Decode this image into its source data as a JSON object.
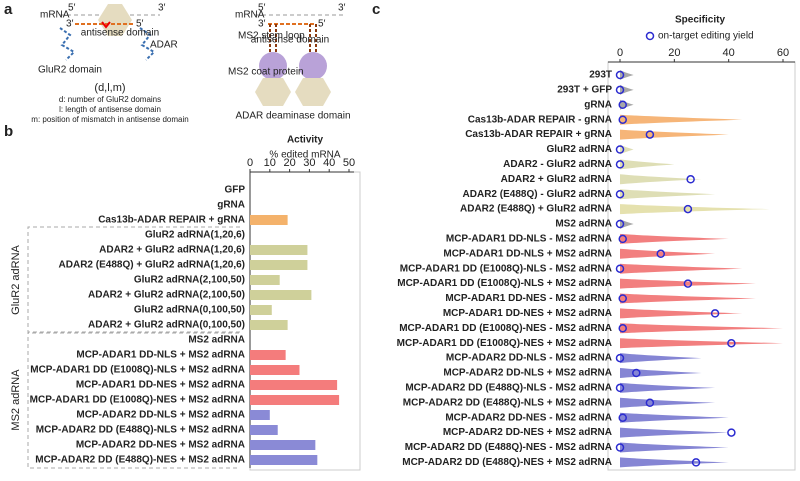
{
  "panel_labels": [
    "a",
    "b",
    "c"
  ],
  "panel_a": {
    "left": {
      "mrna": "mRNA",
      "five": "5′",
      "three": "3′",
      "three_b": "3′",
      "five_b": "5′",
      "antisense": "antisense domain",
      "adar": "ADAR",
      "glur2": "GluR2 domain",
      "notation": "(d,l,m)",
      "legend": [
        "d: number of GluR2 domains",
        "l: length of antisense domain",
        "m: position of mismatch in antisense domain"
      ]
    },
    "right": {
      "mrna": "mRNA",
      "five": "5′",
      "three": "3′",
      "three_b": "3′",
      "five_b": "5′",
      "stem": "MS2 stem loop",
      "antisense": "antisense domain",
      "coat": "MS2 coat protein",
      "deaminase": "ADAR deaminase domain"
    }
  },
  "chart_data": [
    {
      "type": "bar",
      "title": "Activity",
      "subtitle": "% edited mRNA",
      "groups": [
        "GluR2 adRNA",
        "MS2 adRNA"
      ],
      "categories": [
        "GFP",
        "gRNA",
        "Cas13b-ADAR REPAIR + gRNA",
        "GluR2 adRNA(1,20,6)",
        "ADAR2 + GluR2 adRNA(1,20,6)",
        "ADAR2 (E488Q) + GluR2 adRNA(1,20,6)",
        "GluR2 adRNA(2,100,50)",
        "ADAR2 + GluR2 adRNA(2,100,50)",
        "GluR2 adRNA(0,100,50)",
        "ADAR2 + GluR2 adRNA(0,100,50)",
        "MS2 adRNA",
        "MCP-ADAR1 DD-NLS + MS2 adRNA",
        "MCP-ADAR1 DD (E1008Q)-NLS + MS2 adRNA",
        "MCP-ADAR1 DD-NES + MS2 adRNA",
        "MCP-ADAR1 DD (E1008Q)-NES + MS2 adRNA",
        "MCP-ADAR2 DD-NLS + MS2 adRNA",
        "MCP-ADAR2 DD (E488Q)-NLS + MS2 adRNA",
        "MCP-ADAR2 DD-NES + MS2 adRNA",
        "MCP-ADAR2 DD (E488Q)-NES + MS2 adRNA"
      ],
      "values": [
        0,
        0,
        19,
        0,
        29,
        29,
        15,
        31,
        11,
        19,
        0,
        18,
        25,
        44,
        45,
        10,
        14,
        33,
        34
      ],
      "colors": [
        "#f4b26b",
        "#f4b26b",
        "#f4b26b",
        "#cfd09a",
        "#cfd09a",
        "#cfd09a",
        "#cfd09a",
        "#cfd09a",
        "#cfd09a",
        "#cfd09a",
        "#f47c7c",
        "#f47c7c",
        "#f47c7c",
        "#f47c7c",
        "#f47c7c",
        "#8a8ad6",
        "#8a8ad6",
        "#8a8ad6",
        "#8a8ad6"
      ],
      "xlim": [
        0,
        50
      ],
      "xticks": [
        0,
        10,
        20,
        30,
        40,
        50
      ]
    },
    {
      "type": "violin",
      "title": "Specificity",
      "categories": [
        "293T",
        "293T + GFP",
        "gRNA",
        "Cas13b-ADAR REPAIR - gRNA",
        "Cas13b-ADAR REPAIR + gRNA",
        "GluR2 adRNA",
        "ADAR2 - GluR2 adRNA",
        "ADAR2 + GluR2 adRNA",
        "ADAR2 (E488Q) - GluR2 adRNA",
        "ADAR2 (E488Q) + GluR2 adRNA",
        "MS2 adRNA",
        "MCP-ADAR1 DD-NLS - MS2 adRNA",
        "MCP-ADAR1 DD-NLS + MS2 adRNA",
        "MCP-ADAR1 DD (E1008Q)-NLS - MS2 adRNA",
        "MCP-ADAR1 DD (E1008Q)-NLS + MS2 adRNA",
        "MCP-ADAR1 DD-NES - MS2 adRNA",
        "MCP-ADAR1 DD-NES + MS2 adRNA",
        "MCP-ADAR1 DD (E1008Q)-NES - MS2 adRNA",
        "MCP-ADAR1 DD (E1008Q)-NES + MS2 adRNA",
        "MCP-ADAR2 DD-NLS - MS2 adRNA",
        "MCP-ADAR2 DD-NLS + MS2 adRNA",
        "MCP-ADAR2 DD (E488Q)-NLS - MS2 adRNA",
        "MCP-ADAR2 DD (E488Q)-NLS + MS2 adRNA",
        "MCP-ADAR2 DD-NES - MS2 adRNA",
        "MCP-ADAR2 DD-NES + MS2 adRNA",
        "MCP-ADAR2 DD (E488Q)-NES - MS2 adRNA",
        "MCP-ADAR2 DD (E488Q)-NES + MS2 adRNA"
      ],
      "violins": {
        "values": [
          5,
          5,
          5,
          45,
          40,
          5,
          20,
          30,
          35,
          55,
          5,
          40,
          35,
          45,
          50,
          50,
          45,
          60,
          60,
          30,
          30,
          35,
          35,
          40,
          40,
          40,
          40
        ],
        "colors": [
          "#999999",
          "#999999",
          "#999999",
          "#f4a860",
          "#f4a860",
          "#d8d8a8",
          "#d8d8a8",
          "#d8d8a8",
          "#d8d8a8",
          "#e0dca0",
          "#999999",
          "#f06868",
          "#f06868",
          "#f06868",
          "#f06868",
          "#f06868",
          "#f06868",
          "#f06868",
          "#f06868",
          "#7070cc",
          "#7070cc",
          "#7070cc",
          "#7070cc",
          "#7070cc",
          "#7070cc",
          "#7070cc",
          "#7070cc"
        ]
      },
      "series": [
        {
          "name": "on-target editing yield",
          "color": "#2b2bd0",
          "values": [
            0,
            0,
            1,
            1,
            11,
            0,
            0,
            26,
            0,
            25,
            0,
            1,
            15,
            0,
            25,
            1,
            35,
            1,
            41,
            0,
            6,
            0,
            11,
            1,
            41,
            0,
            28
          ]
        }
      ],
      "xlim": [
        0,
        60
      ],
      "xticks": [
        0,
        20,
        40,
        60
      ]
    }
  ]
}
